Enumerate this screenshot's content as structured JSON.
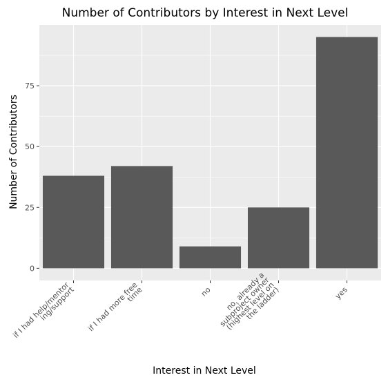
{
  "chart_data": {
    "type": "bar",
    "title": "Number of Contributors by Interest in Next Level",
    "xlabel": "Interest in Next Level",
    "ylabel": "Number of Contributors",
    "categories": [
      [
        "if I had help/mentor",
        "ing/support"
      ],
      [
        "if I had more free",
        "time"
      ],
      [
        "no"
      ],
      [
        "no, already a",
        "subproject owner",
        "(highest level on",
        "the ladder)"
      ],
      [
        "yes"
      ]
    ],
    "values": [
      38,
      42,
      9,
      25,
      95
    ],
    "ylim": [
      -5,
      100
    ],
    "yticks": [
      0,
      25,
      50,
      75
    ],
    "grid": true,
    "legend": "none",
    "colors": {
      "bar": "#595959",
      "panel": "#ebebeb",
      "grid_major": "#ffffff",
      "tick": "#333333"
    }
  }
}
